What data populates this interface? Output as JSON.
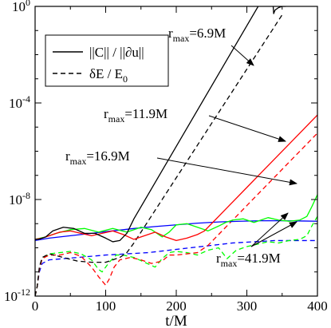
{
  "chart_data": {
    "type": "line",
    "xlabel": "t/M",
    "ylabel": "",
    "xlim": [
      0,
      400
    ],
    "yscale": "log",
    "ylim": [
      1e-12,
      1
    ],
    "grid": false,
    "legend_position": "top-left",
    "x_ticks": [
      {
        "value": 0,
        "label": "0"
      },
      {
        "value": 100,
        "label": "100"
      },
      {
        "value": 200,
        "label": "200"
      },
      {
        "value": 300,
        "label": "300"
      },
      {
        "value": 400,
        "label": "400"
      }
    ],
    "y_ticks": [
      {
        "exp": -12,
        "base": "10",
        "sup": "-12"
      },
      {
        "exp": -8,
        "base": "10",
        "sup": "-8"
      },
      {
        "exp": -4,
        "base": "10",
        "sup": "-4"
      },
      {
        "exp": 0,
        "base": "10",
        "sup": "0"
      }
    ],
    "legend": [
      {
        "label": "||C|| / ||∂u||",
        "dash": "solid",
        "color": "#000000"
      },
      {
        "label": "δE / E",
        "sub": "0",
        "dash": "dashed",
        "color": "#000000"
      }
    ],
    "annotations": [
      {
        "text": "r",
        "sub": "max",
        "rest": "=6.9M",
        "target_series": "6.9M"
      },
      {
        "text": "r",
        "sub": "max",
        "rest": "=11.9M",
        "target_series": "11.9M"
      },
      {
        "text": "r",
        "sub": "max",
        "rest": "=16.9M",
        "target_series": "16.9M"
      },
      {
        "text": "r",
        "sub": "max",
        "rest": "=41.9M",
        "target_series": "41.9M"
      }
    ],
    "series": [
      {
        "id": "c69",
        "group": "6.9M",
        "kind": "constraint",
        "color": "#000000",
        "dash": "solid",
        "x": [
          0,
          5,
          15,
          25,
          40,
          55,
          70,
          85,
          100,
          110,
          120,
          130,
          140,
          160,
          180,
          200,
          220,
          240,
          260,
          280,
          300,
          320,
          330,
          335,
          338,
          340,
          345,
          350,
          355
        ],
        "y": [
          -9.65,
          -9.65,
          -9.55,
          -9.3,
          -9.15,
          -9.2,
          -9.4,
          -9.4,
          -9.6,
          -9.75,
          -9.7,
          -9.4,
          -8.8,
          -7.8,
          -6.8,
          -5.8,
          -4.8,
          -3.8,
          -2.8,
          -1.8,
          -0.8,
          0.2,
          0.7,
          0.95,
          -0.3,
          -0.15,
          -0.05,
          0,
          0
        ]
      },
      {
        "id": "e69",
        "group": "6.9M",
        "kind": "energy",
        "color": "#000000",
        "dash": "dashed",
        "x": [
          0,
          3,
          6,
          10,
          20,
          40,
          60,
          80,
          100,
          110,
          120,
          130,
          140,
          160,
          180,
          200,
          220,
          240,
          260,
          280,
          300,
          320,
          340,
          350
        ],
        "y": [
          -12,
          -11.6,
          -10.8,
          -10.4,
          -10.25,
          -10.4,
          -10.55,
          -10.6,
          -10.6,
          -10.5,
          -10.4,
          -10.2,
          -9.8,
          -8.9,
          -8.0,
          -7.1,
          -6.2,
          -5.3,
          -4.4,
          -3.5,
          -2.6,
          -1.7,
          -0.8,
          -0.35
        ]
      },
      {
        "id": "c119",
        "group": "11.9M",
        "kind": "constraint",
        "color": "#ff0000",
        "dash": "solid",
        "x": [
          0,
          10,
          20,
          35,
          50,
          65,
          80,
          95,
          110,
          125,
          140,
          155,
          170,
          185,
          200,
          215,
          230,
          240,
          250,
          260,
          280,
          300,
          320,
          340,
          360,
          380,
          400
        ],
        "y": [
          -9.65,
          -9.6,
          -9.5,
          -9.35,
          -9.3,
          -9.4,
          -9.5,
          -9.4,
          -9.3,
          -9.45,
          -9.65,
          -9.5,
          -9.35,
          -9.55,
          -9.7,
          -9.6,
          -9.45,
          -9.3,
          -9.0,
          -8.7,
          -8.1,
          -7.5,
          -6.9,
          -6.3,
          -5.7,
          -5.1,
          -4.5
        ]
      },
      {
        "id": "e119",
        "group": "11.9M",
        "kind": "energy",
        "color": "#ff0000",
        "dash": "dashed",
        "x": [
          0,
          3,
          6,
          10,
          20,
          35,
          50,
          65,
          80,
          90,
          100,
          105,
          112,
          120,
          135,
          150,
          165,
          180,
          190,
          200,
          215,
          230,
          245,
          260,
          280,
          300,
          320,
          340,
          360,
          380,
          400
        ],
        "y": [
          -12,
          -11.6,
          -10.9,
          -10.45,
          -10.3,
          -10.3,
          -10.2,
          -10.35,
          -10.8,
          -11.2,
          -11.55,
          -11.3,
          -10.8,
          -10.5,
          -10.4,
          -10.5,
          -10.65,
          -10.55,
          -10.3,
          -10.3,
          -10.25,
          -10.2,
          -9.9,
          -9.45,
          -8.85,
          -8.25,
          -7.65,
          -7.05,
          -6.45,
          -5.85,
          -5.25
        ]
      },
      {
        "id": "c169",
        "group": "16.9M",
        "kind": "constraint",
        "color": "#00ff00",
        "dash": "solid",
        "x": [
          0,
          15,
          30,
          50,
          70,
          90,
          110,
          130,
          150,
          165,
          180,
          190,
          200,
          215,
          230,
          245,
          260,
          270,
          280,
          295,
          310,
          320,
          330,
          345,
          360,
          375,
          385,
          392,
          400
        ],
        "y": [
          -9.65,
          -9.55,
          -9.4,
          -9.25,
          -9.2,
          -9.35,
          -9.2,
          -9.35,
          -9.15,
          -9.25,
          -9.55,
          -9.35,
          -9.05,
          -9.0,
          -9.15,
          -9.3,
          -9.1,
          -8.95,
          -8.85,
          -8.8,
          -8.95,
          -8.85,
          -8.75,
          -8.85,
          -8.9,
          -8.85,
          -8.7,
          -8.3,
          -7.8
        ]
      },
      {
        "id": "e169",
        "group": "16.9M",
        "kind": "energy",
        "color": "#00ff00",
        "dash": "dashed",
        "x": [
          0,
          3,
          6,
          10,
          20,
          35,
          50,
          65,
          80,
          90,
          95,
          105,
          115,
          125,
          140,
          155,
          170,
          180,
          190,
          200,
          215,
          230,
          245,
          260,
          272,
          285,
          300,
          315,
          330,
          345,
          360,
          375,
          385,
          392,
          400
        ],
        "y": [
          -12,
          -11.6,
          -10.9,
          -10.45,
          -10.25,
          -10.2,
          -10.15,
          -10.25,
          -10.5,
          -10.9,
          -11.0,
          -10.6,
          -10.3,
          -10.3,
          -10.4,
          -10.6,
          -10.8,
          -10.45,
          -10.2,
          -10.15,
          -10.2,
          -10.3,
          -10.1,
          -10.0,
          -10.45,
          -10.1,
          -9.95,
          -9.85,
          -9.75,
          -9.8,
          -9.7,
          -9.65,
          -9.5,
          -9.1,
          -8.7
        ]
      },
      {
        "id": "c419",
        "group": "41.9M",
        "kind": "constraint",
        "color": "#0000ff",
        "dash": "solid",
        "x": [
          0,
          20,
          50,
          80,
          110,
          140,
          170,
          200,
          230,
          260,
          290,
          320,
          350,
          380,
          400
        ],
        "y": [
          -9.7,
          -9.6,
          -9.5,
          -9.4,
          -9.3,
          -9.2,
          -9.12,
          -9.05,
          -8.98,
          -8.93,
          -8.9,
          -8.88,
          -8.88,
          -8.89,
          -8.9
        ]
      },
      {
        "id": "e419",
        "group": "41.9M",
        "kind": "energy",
        "color": "#0000ff",
        "dash": "dashed",
        "x": [
          0,
          3,
          6,
          10,
          20,
          40,
          60,
          80,
          100,
          130,
          160,
          190,
          220,
          250,
          280,
          310,
          340,
          370,
          400
        ],
        "y": [
          -12,
          -11.6,
          -11.0,
          -10.65,
          -10.5,
          -10.45,
          -10.4,
          -10.35,
          -10.3,
          -10.25,
          -10.2,
          -10.1,
          -10.0,
          -9.9,
          -9.8,
          -9.75,
          -9.7,
          -9.7,
          -9.7
        ]
      }
    ]
  }
}
